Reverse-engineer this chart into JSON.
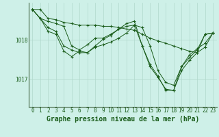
{
  "background_color": "#cef0e8",
  "grid_color": "#b0d8cc",
  "line_color": "#1a5c1a",
  "xlabel": "Graphe pression niveau de la mer (hPa)",
  "xlabel_fontsize": 7,
  "tick_fontsize": 5.5,
  "ytick_labels": [
    1017,
    1018
  ],
  "ylim": [
    1016.3,
    1018.95
  ],
  "xlim": [
    -0.5,
    23.5
  ],
  "series": [
    [
      1018.78,
      1018.78,
      1018.55,
      1018.52,
      1018.45,
      1018.42,
      1018.38,
      1018.38,
      1018.38,
      1018.35,
      1018.35,
      1018.32,
      1018.28,
      1018.25,
      1018.15,
      1018.05,
      1017.98,
      1017.92,
      1017.85,
      1017.78,
      1017.72,
      1017.68,
      1018.15,
      1018.18
    ],
    [
      1018.78,
      1018.55,
      1018.48,
      1018.42,
      1018.35,
      1017.85,
      1017.75,
      1017.88,
      1018.05,
      1018.05,
      1018.15,
      1018.28,
      1018.35,
      1018.38,
      1018.32,
      1017.85,
      1017.22,
      1016.92,
      1016.85,
      1017.32,
      1017.55,
      1017.75,
      1018.15,
      1018.18
    ],
    [
      1018.78,
      1018.55,
      1018.22,
      1018.15,
      1017.72,
      1017.58,
      1017.72,
      1017.68,
      1017.82,
      1017.88,
      1017.95,
      1018.05,
      1018.18,
      1018.38,
      1017.85,
      1017.38,
      1017.08,
      1016.72,
      1016.72,
      1017.22,
      1017.48,
      1017.68,
      1017.82,
      1018.18
    ],
    [
      1018.78,
      1018.55,
      1018.32,
      1018.22,
      1017.85,
      1017.75,
      1017.68,
      1017.68,
      1017.85,
      1018.02,
      1018.12,
      1018.28,
      1018.42,
      1018.48,
      1017.85,
      1017.32,
      1017.05,
      1016.75,
      1016.72,
      1017.32,
      1017.62,
      1017.78,
      1017.92,
      1018.18
    ]
  ]
}
